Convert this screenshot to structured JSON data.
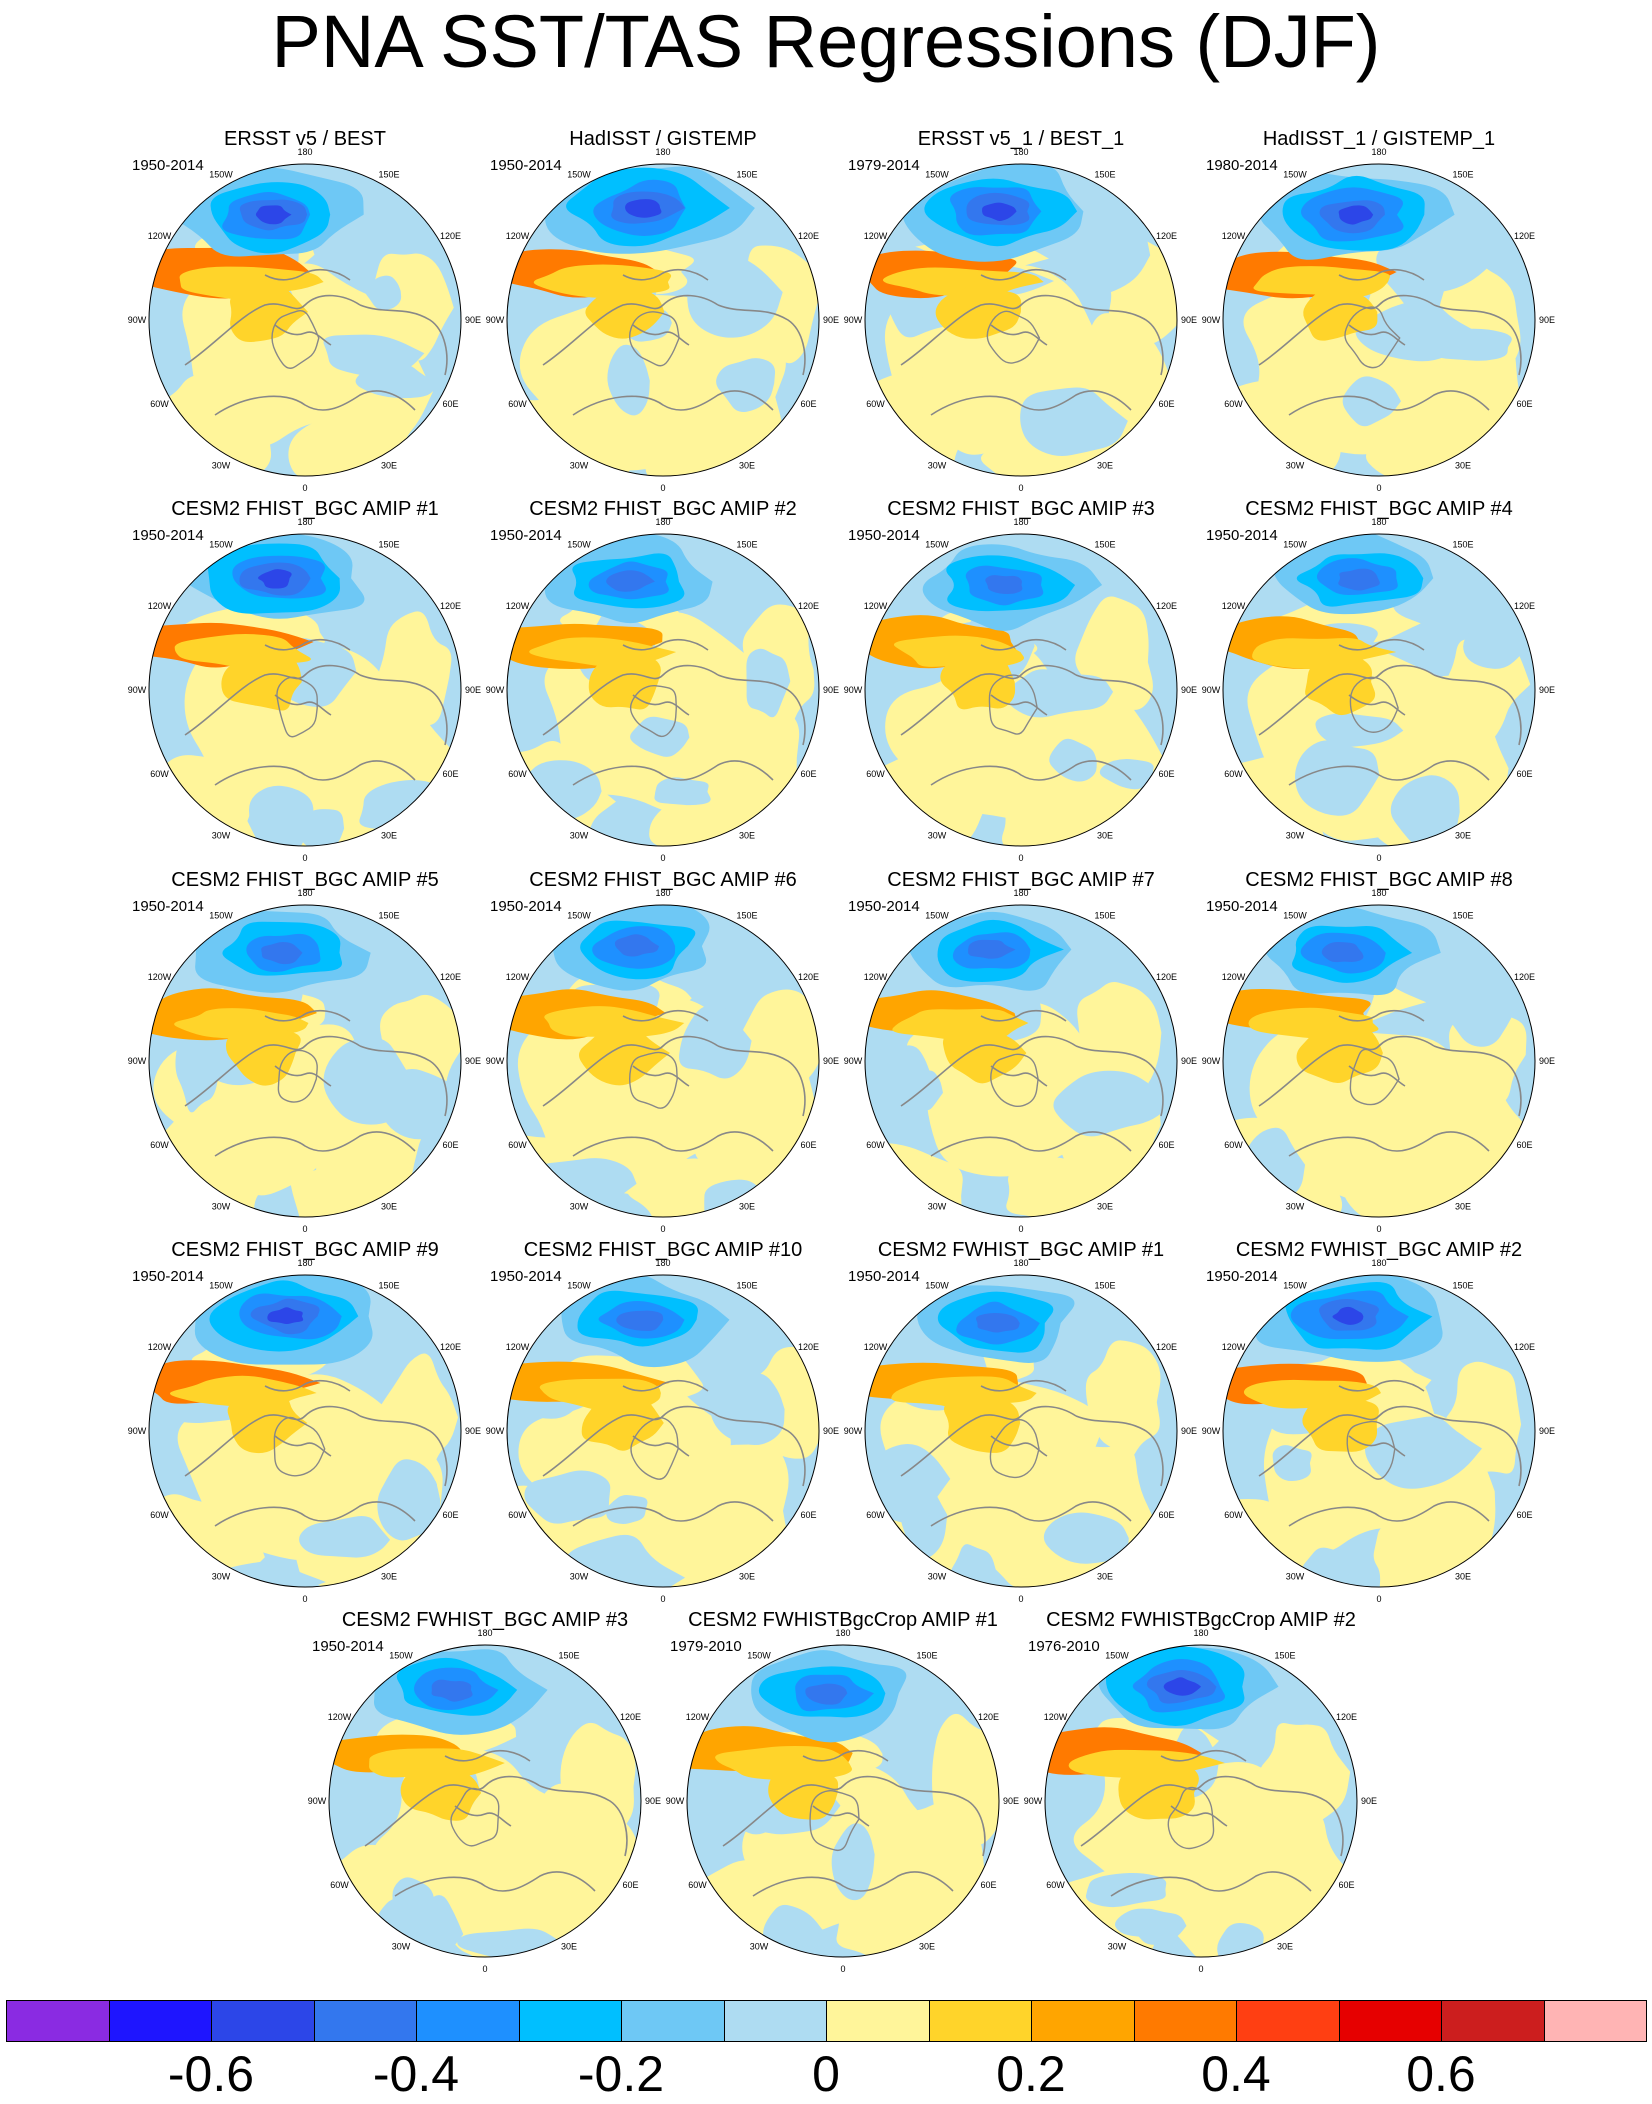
{
  "title": "PNA SST/TAS Regressions (DJF)",
  "chart_data": {
    "type": "map",
    "projection": "north polar stereographic",
    "variable": "SST/TAS regression on PNA index",
    "season": "DJF",
    "panels": [
      {
        "title": "ERSST v5 / BEST",
        "years": "1950-2014"
      },
      {
        "title": "HadISST / GISTEMP",
        "years": "1950-2014"
      },
      {
        "title": "ERSST v5_1 / BEST_1",
        "years": "1979-2014"
      },
      {
        "title": "HadISST_1 / GISTEMP_1",
        "years": "1980-2014"
      },
      {
        "title": "CESM2 FHIST_BGC AMIP #1",
        "years": "1950-2014"
      },
      {
        "title": "CESM2 FHIST_BGC AMIP #2",
        "years": "1950-2014"
      },
      {
        "title": "CESM2 FHIST_BGC AMIP #3",
        "years": "1950-2014"
      },
      {
        "title": "CESM2 FHIST_BGC AMIP #4",
        "years": "1950-2014"
      },
      {
        "title": "CESM2 FHIST_BGC AMIP #5",
        "years": "1950-2014"
      },
      {
        "title": "CESM2 FHIST_BGC AMIP #6",
        "years": "1950-2014"
      },
      {
        "title": "CESM2 FHIST_BGC AMIP #7",
        "years": "1950-2014"
      },
      {
        "title": "CESM2 FHIST_BGC AMIP #8",
        "years": "1950-2014"
      },
      {
        "title": "CESM2 FHIST_BGC AMIP #9",
        "years": "1950-2014"
      },
      {
        "title": "CESM2 FHIST_BGC AMIP #10",
        "years": "1950-2014"
      },
      {
        "title": "CESM2 FWHIST_BGC AMIP #1",
        "years": "1950-2014"
      },
      {
        "title": "CESM2 FWHIST_BGC AMIP #2",
        "years": "1950-2014"
      },
      {
        "title": "CESM2 FWHIST_BGC AMIP #3",
        "years": "1950-2014"
      },
      {
        "title": "CESM2 FWHISTBgcCrop AMIP #1",
        "years": "1979-2010"
      },
      {
        "title": "CESM2 FWHISTBgcCrop AMIP #2",
        "years": "1976-2010"
      }
    ],
    "longitude_labels": [
      "180",
      "150E",
      "120E",
      "90E",
      "60E",
      "30E",
      "0",
      "30W",
      "60W",
      "90W",
      "120W",
      "150W"
    ],
    "colorbar": {
      "colors": [
        "#8a2be2",
        "#1e15ff",
        "#2c46e8",
        "#3377ee",
        "#1e90ff",
        "#00bfff",
        "#6ec8f5",
        "#aedcf2",
        "#fff59a",
        "#ffd42a",
        "#ffa500",
        "#ff7a00",
        "#ff3f12",
        "#e60000",
        "#cc1e1e",
        "#ffb4b4"
      ],
      "tick_labels": [
        "-0.6",
        "-0.4",
        "-0.2",
        "0",
        "0.2",
        "0.4",
        "0.6"
      ]
    },
    "palette": {
      "map_background": "#aedcf2",
      "land_outline": "#888888",
      "circle_outline": "#000000"
    }
  }
}
